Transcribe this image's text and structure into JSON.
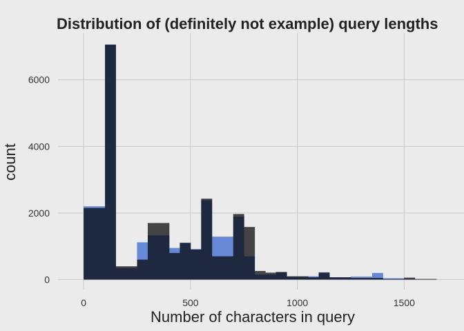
{
  "chart_data": {
    "type": "bar",
    "title": "Distribution of (definitely not example) query lengths",
    "xlabel": "Number of characters in query",
    "ylabel": "count",
    "xlim": [
      -120,
      1780
    ],
    "ylim": [
      -300,
      7400
    ],
    "x_ticks": [
      0,
      500,
      1000,
      1500
    ],
    "y_ticks": [
      0,
      2000,
      4000,
      6000
    ],
    "grid": true,
    "bin_width": 50,
    "bin_starts": [
      0,
      50,
      100,
      150,
      200,
      250,
      300,
      350,
      400,
      450,
      500,
      550,
      600,
      650,
      700,
      750,
      800,
      850,
      900,
      950,
      1000,
      1050,
      1100,
      1150,
      1200,
      1250,
      1300,
      1350,
      1400,
      1450,
      1500,
      1550,
      1600
    ],
    "series": [
      {
        "color": "#444444",
        "values": [
          2150,
          2150,
          7050,
          400,
          400,
          600,
          1700,
          1700,
          800,
          1100,
          900,
          2430,
          700,
          700,
          1970,
          1580,
          260,
          210,
          230,
          100,
          100,
          70,
          210,
          70,
          70,
          50,
          50,
          50,
          20,
          20,
          60,
          20,
          20
        ]
      },
      {
        "color": "#6f94ea",
        "values": [
          2200,
          2200,
          7060,
          350,
          350,
          1120,
          1330,
          1330,
          950,
          1110,
          920,
          2380,
          1290,
          1290,
          1890,
          700,
          150,
          150,
          220,
          80,
          80,
          100,
          220,
          70,
          70,
          90,
          90,
          200,
          40,
          40,
          20,
          10,
          10
        ]
      }
    ]
  }
}
